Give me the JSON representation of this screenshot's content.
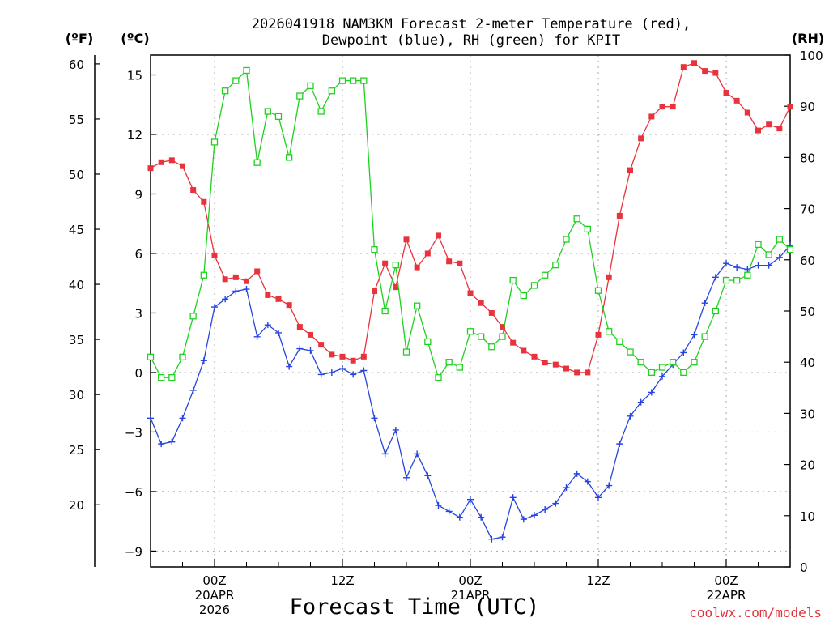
{
  "chart_data": {
    "type": "line",
    "title_line1": "2026041918 NAM3KM Forecast 2-meter Temperature (red),",
    "title_line2": "Dewpoint (blue), RH (green) for KPIT",
    "xlabel": "Forecast Time (UTC)",
    "credit": "coolwx.com/models",
    "units": {
      "fahrenheit": "(ºF)",
      "celsius": "(ºC)",
      "rh": "(RH)"
    },
    "left_f_ticks": [
      "20",
      "25",
      "30",
      "35",
      "40",
      "45",
      "50",
      "55",
      "60"
    ],
    "left_f_tick_values": [
      20,
      25,
      30,
      35,
      40,
      45,
      50,
      55,
      60
    ],
    "left_c_ticks": [
      "−9",
      "−6",
      "−3",
      "0",
      "3",
      "6",
      "9",
      "12",
      "15"
    ],
    "left_c_tick_values": [
      -9,
      -6,
      -3,
      0,
      3,
      6,
      9,
      12,
      15
    ],
    "rh_ticks": [
      "0",
      "10",
      "20",
      "30",
      "40",
      "50",
      "60",
      "70",
      "80",
      "90",
      "100"
    ],
    "rh_tick_values": [
      0,
      10,
      20,
      30,
      40,
      50,
      60,
      70,
      80,
      90,
      100
    ],
    "celsius_range": [
      -9.8,
      16.0
    ],
    "rh_range": [
      0,
      100
    ],
    "x_hours_range": [
      18,
      78
    ],
    "x_ticks": [
      {
        "hour": 24,
        "line1": "00Z",
        "line2": "20APR",
        "line3": "2026"
      },
      {
        "hour": 36,
        "line1": "12Z",
        "line2": "",
        "line3": ""
      },
      {
        "hour": 48,
        "line1": "00Z",
        "line2": "21APR",
        "line3": ""
      },
      {
        "hour": 60,
        "line1": "12Z",
        "line2": "",
        "line3": ""
      },
      {
        "hour": 72,
        "line1": "00Z",
        "line2": "22APR",
        "line3": ""
      }
    ],
    "x_hours": [
      18,
      19,
      20,
      21,
      22,
      23,
      24,
      25,
      26,
      27,
      28,
      29,
      30,
      31,
      32,
      33,
      34,
      35,
      36,
      37,
      38,
      39,
      40,
      41,
      42,
      43,
      44,
      45,
      46,
      47,
      48,
      49,
      50,
      51,
      52,
      53,
      54,
      55,
      56,
      57,
      58,
      59,
      60,
      61,
      62,
      63,
      64,
      65,
      66,
      67,
      68,
      69,
      70,
      71,
      72,
      73,
      74,
      75,
      76,
      77,
      78
    ],
    "series": [
      {
        "name": "2-meter Temperature",
        "units": "degC",
        "color": "#e8323c",
        "marker": "filled-square",
        "values": [
          10.3,
          10.6,
          10.7,
          10.4,
          9.2,
          8.6,
          5.9,
          4.7,
          4.8,
          4.6,
          5.1,
          3.9,
          3.7,
          3.4,
          2.3,
          1.9,
          1.4,
          0.9,
          0.8,
          0.6,
          0.8,
          4.1,
          5.5,
          4.3,
          6.7,
          5.3,
          6.0,
          6.9,
          5.6,
          5.5,
          4.0,
          3.5,
          3.0,
          2.3,
          1.5,
          1.1,
          0.8,
          0.5,
          0.4,
          0.2,
          0.0,
          0.0,
          1.9,
          4.8,
          7.9,
          10.2,
          11.8,
          12.9,
          13.4,
          13.4,
          15.4,
          15.6,
          15.2,
          15.1,
          14.1,
          13.7,
          13.1,
          12.2,
          12.5,
          12.3,
          13.4
        ]
      },
      {
        "name": "Dewpoint",
        "units": "degC",
        "color": "#2844e0",
        "marker": "plus",
        "values": [
          -2.3,
          -3.6,
          -3.5,
          -2.3,
          -0.9,
          0.6,
          3.3,
          3.7,
          4.1,
          4.2,
          1.8,
          2.4,
          2.0,
          0.3,
          1.2,
          1.1,
          -0.1,
          0.0,
          0.2,
          -0.1,
          0.1,
          -2.3,
          -4.1,
          -2.9,
          -5.3,
          -4.1,
          -5.2,
          -6.7,
          -7.0,
          -7.3,
          -6.4,
          -7.3,
          -8.4,
          -8.3,
          -6.3,
          -7.4,
          -7.2,
          -6.9,
          -6.6,
          -5.8,
          -5.1,
          -5.5,
          -6.3,
          -5.7,
          -3.6,
          -2.2,
          -1.5,
          -1.0,
          -0.2,
          0.4,
          1.0,
          1.9,
          3.5,
          4.8,
          5.5,
          5.3,
          5.2,
          5.4,
          5.4,
          5.8,
          6.4
        ]
      },
      {
        "name": "Relative Humidity",
        "units": "percent",
        "color": "#1fd11f",
        "marker": "open-square",
        "values": [
          41,
          37,
          37,
          41,
          49,
          57,
          83,
          93,
          95,
          97,
          79,
          89,
          88,
          80,
          92,
          94,
          89,
          93,
          95,
          95,
          95,
          62,
          50,
          59,
          42,
          51,
          44,
          37,
          40,
          39,
          46,
          45,
          43,
          45,
          56,
          53,
          55,
          57,
          59,
          64,
          68,
          66,
          54,
          46,
          44,
          42,
          40,
          38,
          39,
          40,
          38,
          40,
          45,
          50,
          56,
          56,
          57,
          63,
          61,
          64,
          62
        ]
      }
    ]
  }
}
